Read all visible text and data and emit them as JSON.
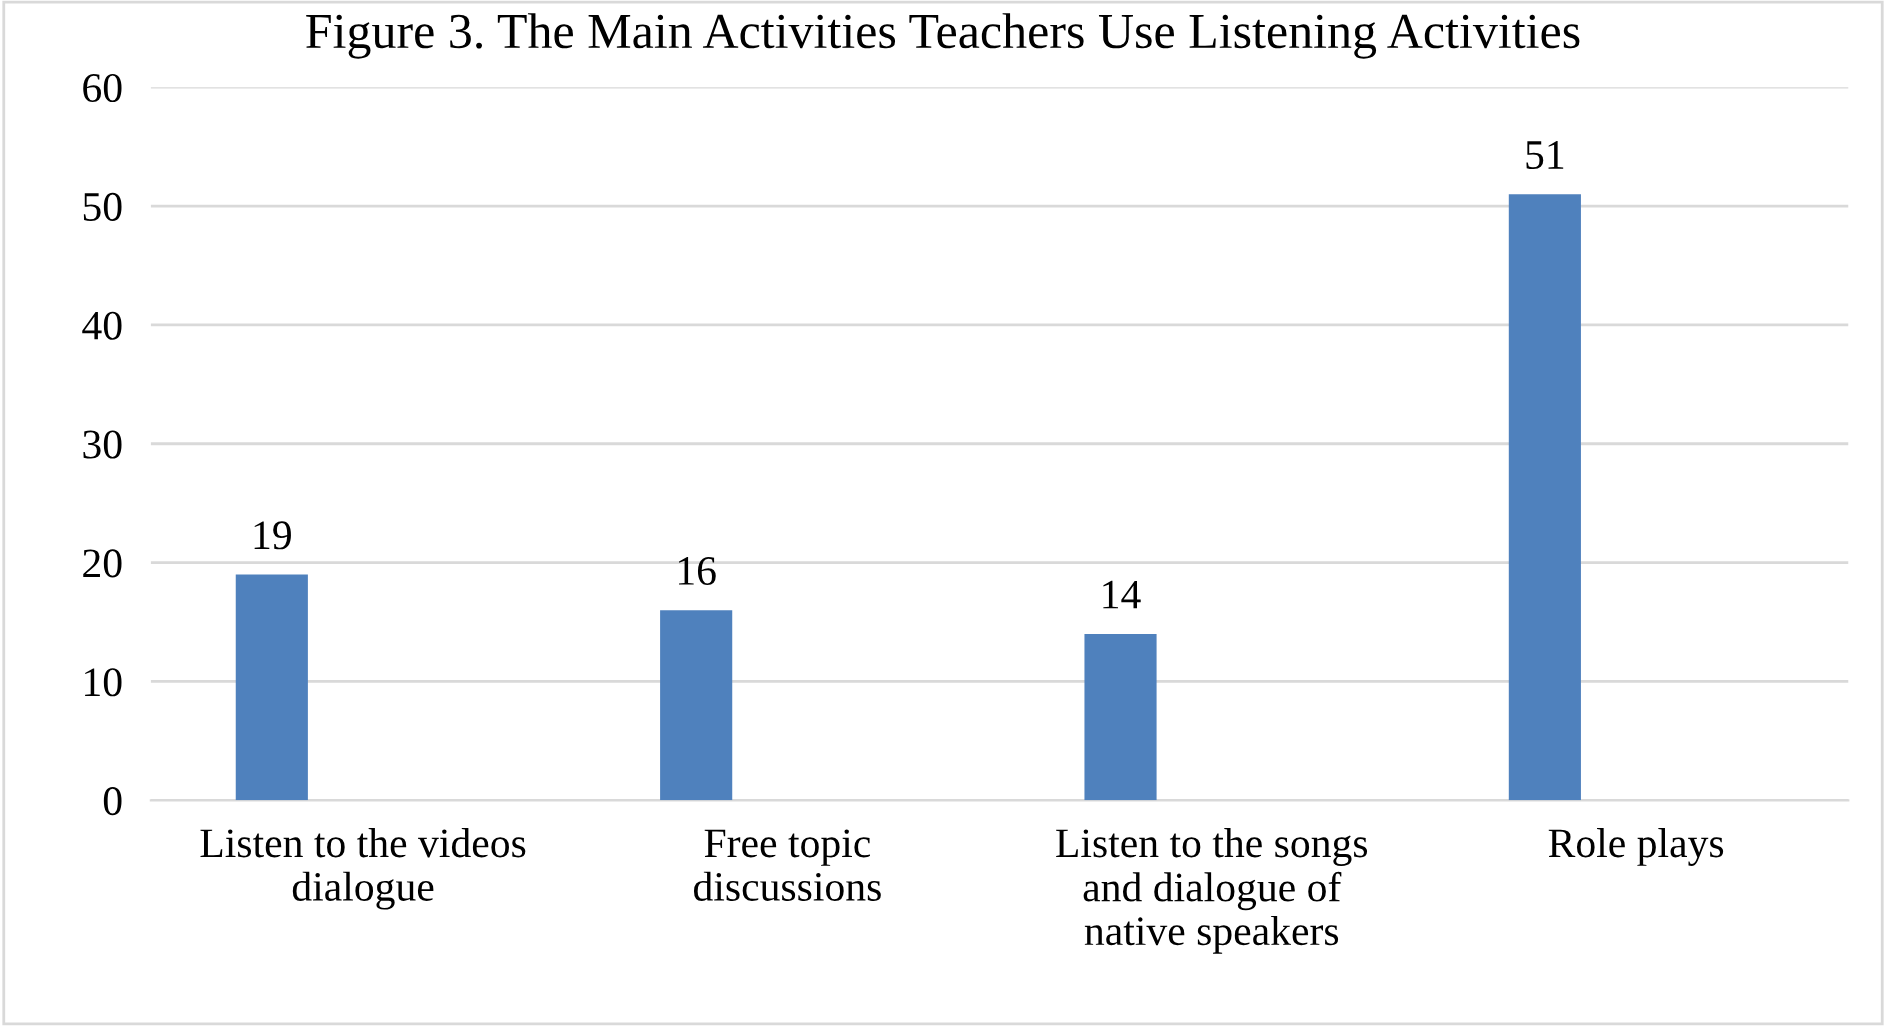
{
  "chart_data": {
    "type": "bar",
    "title": "Figure 3. The Main Activities Teachers Use Listening Activities",
    "categories": [
      "Listen to the videos dialogue",
      "Free topic discussions",
      "Listen to the songs and dialogue of native speakers",
      "Role plays"
    ],
    "values": [
      19,
      16,
      14,
      51
    ],
    "color": "#4f81bd",
    "ylim": [
      0,
      60
    ],
    "yticks": [
      0,
      10,
      20,
      30,
      40,
      50,
      60
    ],
    "grid": "y",
    "data_labels": true,
    "legend": false
  }
}
